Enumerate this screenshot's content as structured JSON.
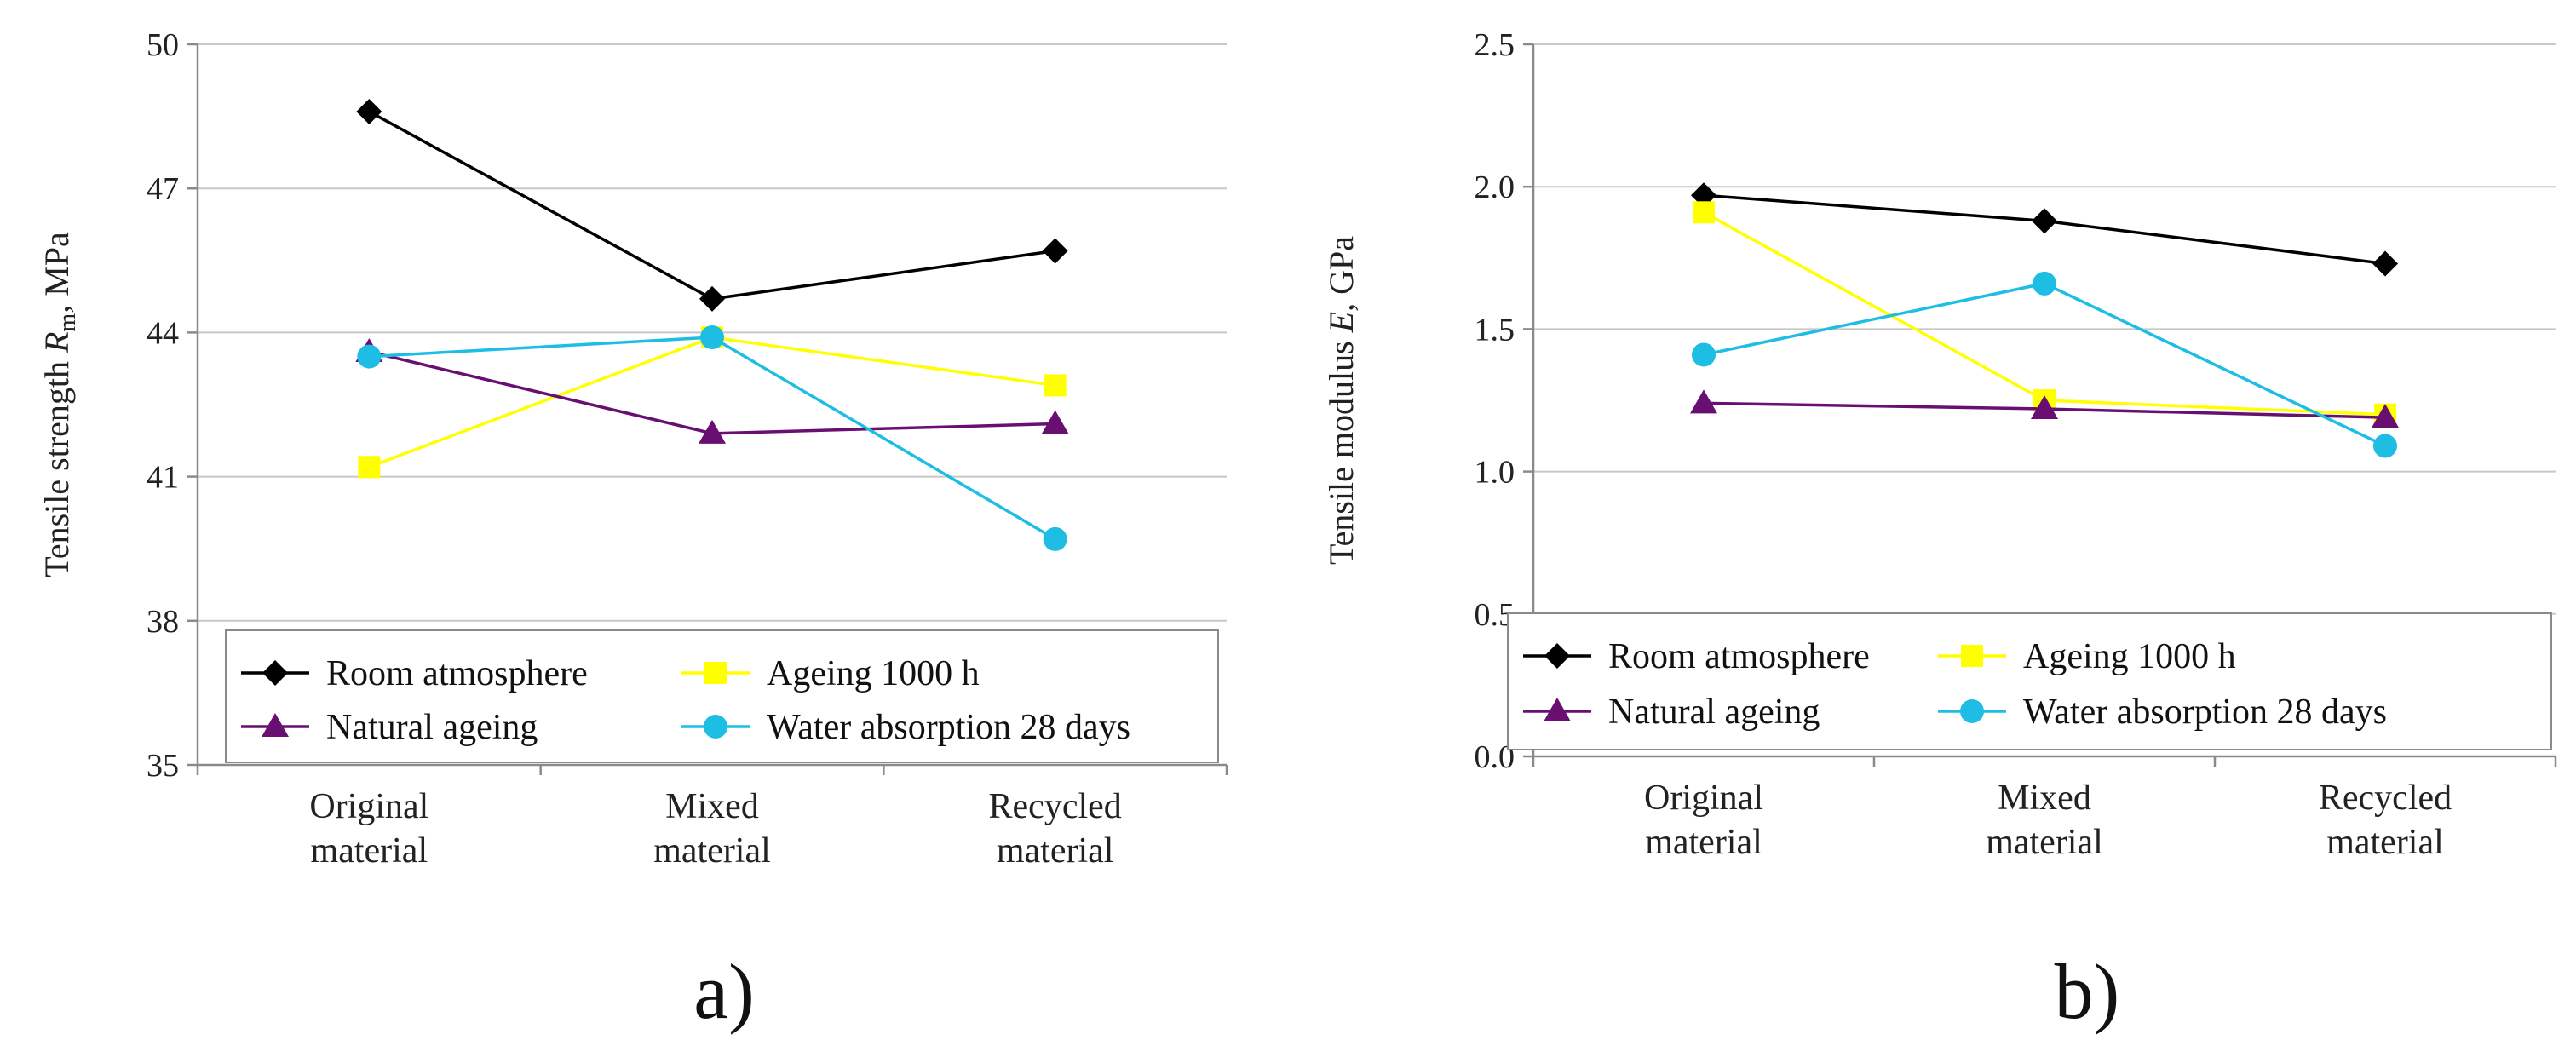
{
  "chart_data": [
    {
      "type": "line",
      "panel_label": "a)",
      "ylabel_parts": [
        "Tensile strength ",
        "R",
        "m",
        ", MPa"
      ],
      "categories": [
        [
          "Original",
          "material"
        ],
        [
          "Mixed",
          "material"
        ],
        [
          "Recycled",
          "material"
        ]
      ],
      "ylim": [
        35,
        50
      ],
      "yticks": [
        "35",
        "38",
        "41",
        "44",
        "47",
        "50"
      ],
      "grid": true,
      "legend_position": "bottom",
      "series": [
        {
          "name": "Room atmosphere",
          "color": "#000000",
          "marker": "diamond",
          "values": [
            48.6,
            44.7,
            45.7
          ]
        },
        {
          "name": "Ageing 1000 h",
          "color": "#ffff00",
          "marker": "square",
          "values": [
            41.2,
            43.9,
            42.9
          ]
        },
        {
          "name": "Natural ageing",
          "color": "#6a0f72",
          "marker": "triangle",
          "values": [
            43.6,
            41.9,
            42.1
          ]
        },
        {
          "name": "Water absorption 28 days",
          "color": "#1ebde4",
          "marker": "circle",
          "values": [
            43.5,
            43.9,
            39.7
          ]
        }
      ]
    },
    {
      "type": "line",
      "panel_label": "b)",
      "ylabel_parts": [
        "Tensile modulus ",
        "E",
        "",
        ", GPa"
      ],
      "categories": [
        [
          "Original",
          "material"
        ],
        [
          "Mixed",
          "material"
        ],
        [
          "Recycled",
          "material"
        ]
      ],
      "ylim": [
        0.0,
        2.5
      ],
      "yticks": [
        "0.0",
        "0.5",
        "1.0",
        "1.5",
        "2.0",
        "2.5"
      ],
      "grid": true,
      "legend_position": "bottom",
      "series": [
        {
          "name": "Room atmosphere",
          "color": "#000000",
          "marker": "diamond",
          "values": [
            1.97,
            1.88,
            1.73
          ]
        },
        {
          "name": "Ageing 1000 h",
          "color": "#ffff00",
          "marker": "square",
          "values": [
            1.91,
            1.25,
            1.2
          ]
        },
        {
          "name": "Natural ageing",
          "color": "#6a0f72",
          "marker": "triangle",
          "values": [
            1.24,
            1.22,
            1.19
          ]
        },
        {
          "name": "Water absorption 28 days",
          "color": "#1ebde4",
          "marker": "circle",
          "values": [
            1.41,
            1.66,
            1.09
          ]
        }
      ]
    }
  ]
}
